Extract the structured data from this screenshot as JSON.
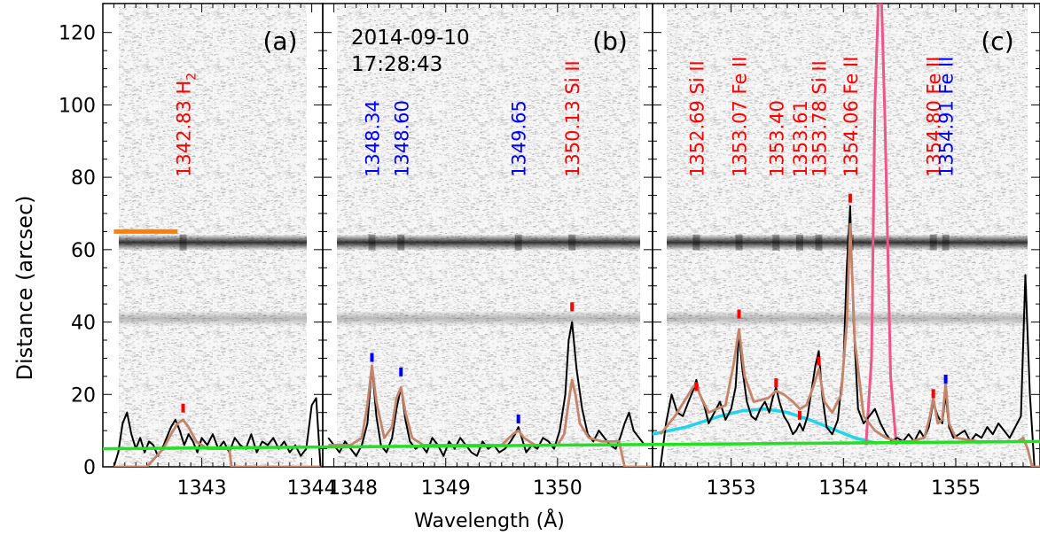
{
  "figure": {
    "ylabel": "Distance (arcsec)",
    "xlabel": "Wavelength (Å)",
    "timestamp_date": "2014-09-10",
    "timestamp_time": "17:28:43"
  },
  "colors": {
    "observed": "#000000",
    "fit": "#c4846a",
    "background": "#22e022",
    "broad": "#22d4e8",
    "red_label": "#ff0000",
    "blue_label": "#0000ff",
    "pink_line": "#ee5588",
    "orange_marker": "#ff8000"
  },
  "chart_data": [
    {
      "type": "line",
      "panel": "(a)",
      "xlim": [
        1342.1,
        1344.1
      ],
      "ylim": [
        0,
        128
      ],
      "ylabel": "Distance (arcsec)",
      "xticks": [
        1343,
        1344
      ],
      "yticks": [
        0,
        20,
        40,
        60,
        80,
        100,
        120
      ],
      "line_labels": [
        {
          "wavelength": 1342.83,
          "text": "1342.83 H",
          "subscript": "2",
          "color": "red",
          "tick_y": 15
        }
      ],
      "bands": [
        {
          "y": 62,
          "strength": 0.8
        },
        {
          "y": 41,
          "strength": 0.25
        }
      ],
      "marker": {
        "x0": 1342.2,
        "x1": 1342.78,
        "y": 65,
        "color": "orange"
      },
      "series": [
        {
          "role": "observed",
          "x": [
            1342.2,
            1342.24,
            1342.28,
            1342.32,
            1342.36,
            1342.4,
            1342.44,
            1342.48,
            1342.52,
            1342.56,
            1342.6,
            1342.64,
            1342.68,
            1342.72,
            1342.76,
            1342.8,
            1342.84,
            1342.88,
            1342.92,
            1342.96,
            1343.0,
            1343.05,
            1343.1,
            1343.15,
            1343.2,
            1343.25,
            1343.3,
            1343.35,
            1343.4,
            1343.45,
            1343.5,
            1343.55,
            1343.6,
            1343.65,
            1343.7,
            1343.75,
            1343.8,
            1343.85,
            1343.9,
            1343.95,
            1344.0,
            1344.04,
            1344.08
          ],
          "y": [
            0,
            4,
            12,
            15,
            9,
            5,
            8,
            4,
            7,
            6,
            3,
            5,
            8,
            11,
            13,
            10,
            6,
            9,
            7,
            4,
            8,
            6,
            9,
            5,
            7,
            4,
            8,
            6,
            5,
            9,
            4,
            7,
            6,
            8,
            5,
            7,
            4,
            6,
            3,
            5,
            17,
            19,
            0
          ]
        },
        {
          "role": "fit",
          "x": [
            1342.2,
            1342.5,
            1342.65,
            1342.72,
            1342.78,
            1342.83,
            1342.88,
            1342.95,
            1343.05,
            1343.25,
            1343.27,
            1343.35,
            1344.08
          ],
          "y": [
            0,
            0,
            5,
            9,
            12,
            13,
            11,
            7,
            5,
            5,
            0,
            0,
            0
          ]
        }
      ]
    },
    {
      "type": "line",
      "panel": "(b)",
      "xlim": [
        1347.9,
        1350.85
      ],
      "ylim": [
        0,
        128
      ],
      "xticks": [
        1348,
        1349,
        1350
      ],
      "line_labels": [
        {
          "wavelength": 1348.34,
          "text": "1348.34",
          "color": "blue",
          "tick_y": 29
        },
        {
          "wavelength": 1348.6,
          "text": "1348.60",
          "color": "blue",
          "tick_y": 25
        },
        {
          "wavelength": 1349.65,
          "text": "1349.65",
          "color": "blue",
          "tick_y": 12
        },
        {
          "wavelength": 1350.13,
          "text": "1350.13 Si II",
          "color": "red",
          "tick_y": 43
        }
      ],
      "bands": [
        {
          "y": 62,
          "strength": 0.8
        },
        {
          "y": 41,
          "strength": 0.25
        }
      ],
      "series": [
        {
          "role": "observed",
          "x": [
            1347.95,
            1348.0,
            1348.05,
            1348.1,
            1348.15,
            1348.2,
            1348.25,
            1348.3,
            1348.34,
            1348.38,
            1348.42,
            1348.47,
            1348.52,
            1348.56,
            1348.6,
            1348.64,
            1348.68,
            1348.73,
            1348.78,
            1348.83,
            1348.88,
            1348.93,
            1348.98,
            1349.03,
            1349.08,
            1349.13,
            1349.18,
            1349.23,
            1349.28,
            1349.33,
            1349.38,
            1349.43,
            1349.48,
            1349.53,
            1349.58,
            1349.62,
            1349.65,
            1349.68,
            1349.72,
            1349.77,
            1349.82,
            1349.87,
            1349.92,
            1349.97,
            1350.02,
            1350.07,
            1350.1,
            1350.13,
            1350.17,
            1350.22,
            1350.27,
            1350.32,
            1350.37,
            1350.42,
            1350.47,
            1350.52,
            1350.56,
            1350.6,
            1350.64,
            1350.68,
            1350.73,
            1350.78
          ],
          "y": [
            8,
            6,
            4,
            7,
            5,
            3,
            6,
            12,
            28,
            14,
            6,
            4,
            8,
            16,
            22,
            13,
            7,
            5,
            6,
            4,
            8,
            6,
            3,
            7,
            5,
            8,
            6,
            4,
            3,
            7,
            5,
            6,
            4,
            5,
            7,
            9,
            11,
            8,
            4,
            6,
            5,
            8,
            7,
            5,
            10,
            20,
            35,
            40,
            27,
            16,
            9,
            7,
            10,
            8,
            6,
            5,
            8,
            12,
            15,
            10,
            8,
            6
          ]
        },
        {
          "role": "fit",
          "x": [
            1347.95,
            1348.15,
            1348.25,
            1348.3,
            1348.34,
            1348.38,
            1348.45,
            1348.52,
            1348.56,
            1348.6,
            1348.64,
            1348.7,
            1348.8,
            1349.5,
            1349.6,
            1349.65,
            1349.7,
            1349.8,
            1350.0,
            1350.06,
            1350.1,
            1350.13,
            1350.16,
            1350.2,
            1350.28,
            1350.4,
            1350.55,
            1350.6,
            1350.85
          ],
          "y": [
            6,
            6,
            8,
            17,
            28,
            18,
            8,
            11,
            19,
            22,
            15,
            8,
            6,
            6,
            9,
            10,
            8,
            6,
            6,
            9,
            18,
            24,
            20,
            12,
            8,
            7,
            7,
            0,
            0
          ]
        }
      ]
    },
    {
      "type": "line",
      "panel": "(c)",
      "xlim": [
        1352.3,
        1355.75
      ],
      "ylim": [
        0,
        128
      ],
      "xticks": [
        1353,
        1354,
        1355
      ],
      "line_labels": [
        {
          "wavelength": 1352.69,
          "text": "1352.69 Si II",
          "color": "red",
          "tick_y": 21
        },
        {
          "wavelength": 1353.07,
          "text": "1353.07 Fe II",
          "color": "red",
          "tick_y": 41
        },
        {
          "wavelength": 1353.4,
          "text": "1353.40",
          "color": "red",
          "tick_y": 22
        },
        {
          "wavelength": 1353.61,
          "text": "1353.61",
          "color": "red",
          "tick_y": 13
        },
        {
          "wavelength": 1353.78,
          "text": "1353.78 Si II",
          "color": "red",
          "tick_y": 28
        },
        {
          "wavelength": 1354.06,
          "text": "1354.06 Fe II",
          "color": "red",
          "tick_y": 73
        },
        {
          "wavelength": 1354.8,
          "text": "1354.80 Fe II",
          "color": "red",
          "tick_y": 19
        },
        {
          "wavelength": 1354.91,
          "text": "1354.91 Fe II",
          "color": "blue",
          "tick_y": 23
        }
      ],
      "bands": [
        {
          "y": 62,
          "strength": 0.8
        },
        {
          "y": 41,
          "strength": 0.25
        }
      ],
      "series": [
        {
          "role": "observed",
          "x": [
            1352.37,
            1352.42,
            1352.47,
            1352.52,
            1352.57,
            1352.62,
            1352.66,
            1352.69,
            1352.72,
            1352.76,
            1352.8,
            1352.85,
            1352.9,
            1352.95,
            1353.0,
            1353.04,
            1353.07,
            1353.1,
            1353.14,
            1353.18,
            1353.22,
            1353.26,
            1353.3,
            1353.34,
            1353.37,
            1353.4,
            1353.43,
            1353.47,
            1353.51,
            1353.55,
            1353.58,
            1353.61,
            1353.64,
            1353.68,
            1353.72,
            1353.75,
            1353.78,
            1353.81,
            1353.85,
            1353.9,
            1353.95,
            1354.0,
            1354.03,
            1354.06,
            1354.09,
            1354.13,
            1354.18,
            1354.23,
            1354.28,
            1354.33,
            1354.38,
            1354.43,
            1354.48,
            1354.53,
            1354.58,
            1354.63,
            1354.68,
            1354.72,
            1354.76,
            1354.8,
            1354.84,
            1354.88,
            1354.91,
            1354.94,
            1354.98,
            1355.03,
            1355.08,
            1355.13,
            1355.18,
            1355.23,
            1355.28,
            1355.33,
            1355.38,
            1355.43,
            1355.48,
            1355.53,
            1355.58,
            1355.62,
            1355.66,
            1355.7
          ],
          "y": [
            0,
            12,
            20,
            15,
            14,
            18,
            21,
            24,
            20,
            17,
            12,
            15,
            18,
            13,
            16,
            22,
            37,
            27,
            18,
            14,
            13,
            16,
            18,
            15,
            19,
            22,
            18,
            14,
            12,
            9,
            10,
            12,
            10,
            14,
            22,
            28,
            32,
            20,
            11,
            9,
            13,
            28,
            55,
            72,
            40,
            16,
            12,
            14,
            16,
            12,
            9,
            7,
            8,
            7,
            9,
            7,
            10,
            8,
            11,
            18,
            14,
            12,
            20,
            11,
            8,
            9,
            10,
            7,
            9,
            8,
            11,
            9,
            12,
            10,
            8,
            11,
            14,
            53,
            20,
            0
          ]
        },
        {
          "role": "fit",
          "x": [
            1352.37,
            1352.5,
            1352.6,
            1352.66,
            1352.69,
            1352.72,
            1352.8,
            1352.95,
            1353.02,
            1353.07,
            1353.12,
            1353.2,
            1353.33,
            1353.4,
            1353.47,
            1353.55,
            1353.61,
            1353.67,
            1353.73,
            1353.78,
            1353.83,
            1353.9,
            1353.98,
            1354.03,
            1354.06,
            1354.1,
            1354.18,
            1354.28,
            1354.38,
            1354.48,
            1354.6,
            1354.72,
            1354.77,
            1354.8,
            1354.84,
            1354.88,
            1354.91,
            1354.94,
            1355.0,
            1355.2,
            1355.4,
            1355.55,
            1355.6,
            1355.64,
            1355.68,
            1355.75
          ],
          "y": [
            9,
            14,
            19,
            22,
            23,
            20,
            15,
            17,
            28,
            38,
            25,
            18,
            19,
            21,
            20,
            18,
            16,
            17,
            22,
            27,
            18,
            15,
            20,
            40,
            67,
            35,
            14,
            10,
            8,
            7,
            7,
            8,
            14,
            19,
            12,
            13,
            23,
            12,
            8,
            7,
            7,
            7,
            8,
            5,
            0,
            0
          ]
        },
        {
          "role": "broad",
          "x": [
            1352.3,
            1352.6,
            1352.9,
            1353.1,
            1353.3,
            1353.5,
            1353.7,
            1353.9,
            1354.1,
            1354.3
          ],
          "y": [
            9,
            11,
            14,
            15.5,
            16,
            15,
            13,
            10.5,
            8,
            6.5
          ]
        },
        {
          "role": "pink",
          "x": [
            1354.2,
            1354.25,
            1354.28,
            1354.31,
            1354.34,
            1354.37,
            1354.42,
            1354.47
          ],
          "y": [
            6,
            30,
            100,
            128,
            128,
            95,
            25,
            6
          ]
        }
      ]
    }
  ],
  "background_line": {
    "color": "green",
    "y_start": 5,
    "y_end": 7
  }
}
